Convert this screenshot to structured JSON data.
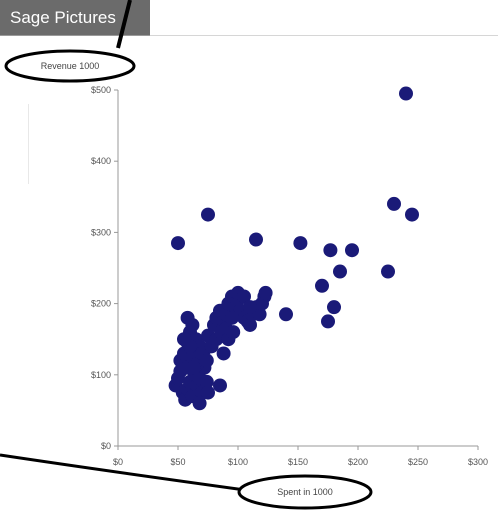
{
  "header": {
    "tab_label": "Sage Pictures"
  },
  "chart_data": {
    "type": "scatter",
    "xlabel": "Spent in 1000",
    "ylabel": "Revenue 1000",
    "xlim": [
      0,
      300
    ],
    "ylim": [
      0,
      500
    ],
    "xticks": [
      "$0",
      "$50",
      "$100",
      "$150",
      "$200",
      "$250",
      "$300"
    ],
    "yticks": [
      "$0",
      "$100",
      "$200",
      "$300",
      "$400",
      "$500"
    ],
    "grid": false,
    "point_color": "#1a1a78",
    "series": [
      {
        "points": [
          [
            48,
            85
          ],
          [
            50,
            95
          ],
          [
            52,
            105
          ],
          [
            54,
            75
          ],
          [
            56,
            65
          ],
          [
            58,
            80
          ],
          [
            60,
            90
          ],
          [
            62,
            70
          ],
          [
            64,
            100
          ],
          [
            66,
            85
          ],
          [
            68,
            95
          ],
          [
            70,
            75
          ],
          [
            72,
            110
          ],
          [
            74,
            90
          ],
          [
            52,
            120
          ],
          [
            55,
            130
          ],
          [
            58,
            145
          ],
          [
            60,
            160
          ],
          [
            62,
            170
          ],
          [
            65,
            150
          ],
          [
            68,
            140
          ],
          [
            70,
            125
          ],
          [
            72,
            135
          ],
          [
            75,
            155
          ],
          [
            78,
            150
          ],
          [
            80,
            170
          ],
          [
            82,
            180
          ],
          [
            85,
            190
          ],
          [
            88,
            175
          ],
          [
            90,
            185
          ],
          [
            92,
            200
          ],
          [
            95,
            210
          ],
          [
            98,
            195
          ],
          [
            100,
            205
          ],
          [
            102,
            190
          ],
          [
            105,
            180
          ],
          [
            108,
            175
          ],
          [
            110,
            170
          ],
          [
            112,
            185
          ],
          [
            115,
            195
          ],
          [
            118,
            185
          ],
          [
            120,
            200
          ],
          [
            122,
            210
          ],
          [
            58,
            110
          ],
          [
            62,
            125
          ],
          [
            66,
            115
          ],
          [
            70,
            130
          ],
          [
            74,
            120
          ],
          [
            78,
            140
          ],
          [
            82,
            150
          ],
          [
            86,
            160
          ],
          [
            90,
            165
          ],
          [
            95,
            180
          ],
          [
            100,
            215
          ],
          [
            105,
            210
          ],
          [
            110,
            195
          ],
          [
            88,
            130
          ],
          [
            92,
            150
          ],
          [
            96,
            160
          ],
          [
            85,
            85
          ],
          [
            58,
            180
          ],
          [
            60,
            140
          ],
          [
            55,
            150
          ],
          [
            63,
            110
          ],
          [
            68,
            60
          ],
          [
            75,
            75
          ],
          [
            50,
            285
          ],
          [
            75,
            325
          ],
          [
            115,
            290
          ],
          [
            152,
            285
          ],
          [
            170,
            225
          ],
          [
            177,
            275
          ],
          [
            185,
            245
          ],
          [
            195,
            275
          ],
          [
            225,
            245
          ],
          [
            230,
            340
          ],
          [
            245,
            325
          ],
          [
            240,
            495
          ],
          [
            140,
            185
          ],
          [
            180,
            195
          ],
          [
            175,
            175
          ],
          [
            123,
            215
          ]
        ]
      }
    ]
  }
}
